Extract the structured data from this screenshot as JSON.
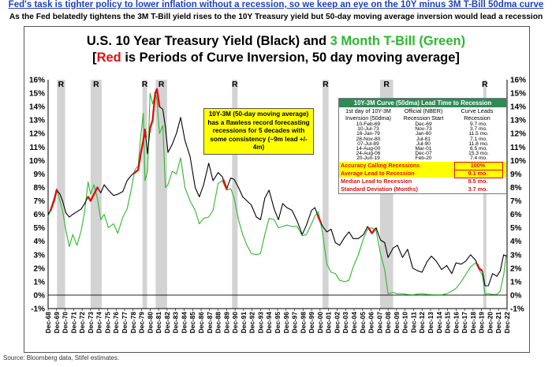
{
  "header": {
    "headline": "Fed's task is tighter policy to lower inflation without a recession, so we keep an eye on the 10Y minus 3M T-Bill 50dma curve",
    "subhead": "As the Fed belatedly tightens the 3M T-Bill yield rises to the 10Y Treasury yield but 50-day moving average inversion would lead a recession"
  },
  "title": {
    "line1_a": "U.S. 10 Year Treasury Yield (Black) and ",
    "line1_b": "3 Month T-Bill (Green)",
    "line2_a": "[",
    "line2_b": "Red",
    "line2_c": " is Periods of Curve Inversion, 50 day moving average]"
  },
  "callout": {
    "text": "10Y-3M (50-day moving average) has a flawless record forecasting recessions for 5 decades with some consistency (~9m lead +/- 4m)"
  },
  "lead_table": {
    "title": "10Y-3M Curve (50dma) Lead Time to Recession",
    "col1": "1st day of 10Y-3M Inversion (50dma)",
    "col2": "Official (NBER) Recession Start",
    "col3": "Curve Leads Recession",
    "rows": [
      [
        "10-Feb-69",
        "Dec-69",
        "9.7 mo."
      ],
      [
        "10-Jul-73",
        "Nov-73",
        "3.7 mo."
      ],
      [
        "16-Jan-79",
        "Jan-80",
        "11.5 mo."
      ],
      [
        "28-Nov-80",
        "Jul-81",
        "7.1 mo."
      ],
      [
        "07-Jul-89",
        "Jul-90",
        "11.8 mo."
      ],
      [
        "14-Aug-00",
        "Mar-01",
        "6.5 mo."
      ],
      [
        "24-Aug-06",
        "Dec-07",
        "15.3 mo."
      ],
      [
        "20-Jun-19",
        "Feb-20",
        "7.4 mo."
      ]
    ],
    "stats": [
      {
        "label": "Accuracy Calling Recessions",
        "value": "100%"
      },
      {
        "label": "Average Lead to Recession",
        "value": "9.1 mo."
      },
      {
        "label": "Median Lead to Recession",
        "value": "8.5 mo."
      },
      {
        "label": "Standard Deviation (Months)",
        "value": "3.7 mo."
      }
    ]
  },
  "source": "Source: Bloomberg data, Stifel estimates.",
  "colors": {
    "ten_year": "#000000",
    "three_month": "#2db82d",
    "inversion": "#e01010",
    "recession_bar": "#d3d3d3",
    "callout_bg": "#ffff00",
    "table_header": "#2e8b57"
  },
  "chart_data": {
    "type": "line",
    "ylim": [
      -1,
      16
    ],
    "y_ticks": [
      "-1%",
      "0%",
      "1%",
      "2%",
      "3%",
      "4%",
      "5%",
      "6%",
      "7%",
      "8%",
      "9%",
      "10%",
      "11%",
      "12%",
      "13%",
      "14%",
      "15%",
      "16%"
    ],
    "x_ticks": [
      "Dec-68",
      "Dec-69",
      "Dec-70",
      "Dec-71",
      "Dec-72",
      "Dec-73",
      "Dec-74",
      "Dec-75",
      "Dec-76",
      "Dec-77",
      "Dec-78",
      "Dec-79",
      "Dec-80",
      "Dec-81",
      "Dec-82",
      "Dec-83",
      "Dec-84",
      "Dec-85",
      "Dec-86",
      "Dec-87",
      "Dec-88",
      "Dec-89",
      "Dec-90",
      "Dec-91",
      "Dec-92",
      "Dec-93",
      "Dec-94",
      "Dec-95",
      "Dec-96",
      "Dec-97",
      "Dec-98",
      "Dec-99",
      "Dec-00",
      "Dec-01",
      "Dec-02",
      "Dec-03",
      "Dec-04",
      "Dec-05",
      "Dec-06",
      "Dec-07",
      "Dec-08",
      "Dec-09",
      "Dec-10",
      "Dec-11",
      "Dec-12",
      "Dec-13",
      "Dec-14",
      "Dec-15",
      "Dec-16",
      "Dec-17",
      "Dec-18",
      "Dec-19",
      "Dec-20",
      "Dec-21",
      "Dec-22"
    ],
    "recession_label": "R",
    "recessions": [
      [
        1969.95,
        1970.9
      ],
      [
        1973.9,
        1975.2
      ],
      [
        1980.0,
        1980.55
      ],
      [
        1981.55,
        1982.9
      ],
      [
        1990.55,
        1991.2
      ],
      [
        2001.2,
        2001.9
      ],
      [
        2007.95,
        2009.5
      ],
      [
        2020.1,
        2020.35
      ]
    ],
    "series": [
      {
        "name": "10 Year Treasury Yield",
        "x": [
          1968.9,
          1969.2,
          1969.6,
          1969.9,
          1970.3,
          1970.6,
          1971.0,
          1971.4,
          1971.8,
          1972.3,
          1972.8,
          1973.2,
          1973.6,
          1973.9,
          1974.3,
          1974.7,
          1975.1,
          1975.5,
          1976.0,
          1976.6,
          1977.1,
          1977.7,
          1978.2,
          1978.7,
          1979.1,
          1979.5,
          1979.8,
          1980.1,
          1980.3,
          1980.6,
          1980.9,
          1981.2,
          1981.5,
          1981.7,
          1982.0,
          1982.4,
          1982.7,
          1983.0,
          1983.5,
          1984.0,
          1984.5,
          1985.0,
          1985.6,
          1986.2,
          1986.7,
          1987.2,
          1987.8,
          1988.3,
          1988.9,
          1989.4,
          1989.9,
          1990.4,
          1990.8,
          1991.3,
          1991.8,
          1992.3,
          1992.8,
          1993.4,
          1993.9,
          1994.4,
          1994.9,
          1995.5,
          1996.0,
          1996.5,
          1997.0,
          1997.6,
          1998.2,
          1998.8,
          1999.3,
          1999.9,
          2000.3,
          2000.7,
          2001.2,
          2001.7,
          2002.2,
          2002.7,
          2003.2,
          2003.8,
          2004.3,
          2004.8,
          2005.4,
          2006.0,
          2006.5,
          2007.0,
          2007.5,
          2008.0,
          2008.5,
          2008.9,
          2009.5,
          2010.0,
          2010.6,
          2011.2,
          2011.8,
          2012.4,
          2012.9,
          2013.5,
          2014.0,
          2014.6,
          2015.2,
          2015.8,
          2016.4,
          2016.9,
          2017.5,
          2018.0,
          2018.6,
          2019.2,
          2019.6,
          2020.0,
          2020.3,
          2020.7,
          2021.2,
          2021.7,
          2022.1,
          2022.5,
          2022.8
        ],
        "y": [
          6.0,
          6.3,
          7.0,
          7.8,
          7.5,
          7.0,
          6.1,
          5.8,
          6.0,
          6.2,
          6.4,
          6.8,
          7.3,
          7.0,
          7.5,
          8.0,
          7.6,
          8.2,
          7.8,
          7.4,
          7.5,
          7.7,
          8.5,
          8.9,
          9.1,
          9.3,
          10.5,
          11.5,
          12.3,
          10.5,
          12.4,
          13.0,
          15.0,
          15.3,
          14.0,
          13.8,
          12.5,
          10.6,
          11.2,
          12.0,
          13.2,
          11.5,
          10.3,
          8.0,
          7.3,
          8.2,
          9.8,
          8.5,
          9.1,
          8.8,
          7.9,
          8.7,
          8.6,
          8.0,
          7.3,
          7.0,
          6.7,
          5.8,
          5.6,
          7.2,
          7.8,
          6.4,
          5.6,
          6.8,
          6.5,
          6.3,
          5.5,
          4.5,
          5.2,
          6.3,
          6.5,
          5.8,
          5.1,
          4.7,
          4.9,
          3.9,
          3.7,
          4.3,
          4.7,
          4.2,
          4.2,
          4.5,
          5.1,
          4.6,
          5.0,
          4.1,
          3.9,
          2.8,
          3.5,
          3.7,
          2.8,
          3.4,
          2.0,
          1.8,
          1.7,
          2.5,
          2.9,
          2.5,
          1.9,
          2.2,
          1.6,
          2.4,
          2.3,
          2.5,
          3.0,
          2.6,
          2.0,
          1.8,
          0.7,
          0.7,
          1.6,
          1.4,
          1.8,
          3.0,
          2.9
        ]
      },
      {
        "name": "3 Month T-Bill",
        "x": [
          1968.9,
          1969.2,
          1969.6,
          1969.9,
          1970.3,
          1970.6,
          1971.0,
          1971.4,
          1971.8,
          1972.3,
          1972.8,
          1973.2,
          1973.6,
          1973.9,
          1974.3,
          1974.7,
          1975.1,
          1975.5,
          1976.0,
          1976.6,
          1977.1,
          1977.7,
          1978.2,
          1978.7,
          1979.1,
          1979.5,
          1979.8,
          1980.1,
          1980.3,
          1980.6,
          1980.9,
          1981.2,
          1981.5,
          1981.7,
          1982.0,
          1982.4,
          1982.7,
          1983.0,
          1983.5,
          1984.0,
          1984.5,
          1985.0,
          1985.6,
          1986.2,
          1986.7,
          1987.2,
          1987.8,
          1988.3,
          1988.9,
          1989.4,
          1989.9,
          1990.4,
          1990.8,
          1991.3,
          1991.8,
          1992.3,
          1992.8,
          1993.4,
          1993.9,
          1994.4,
          1994.9,
          1995.5,
          1996.0,
          1996.5,
          1997.0,
          1997.6,
          1998.2,
          1998.8,
          1999.3,
          1999.9,
          2000.3,
          2000.7,
          2001.2,
          2001.7,
          2002.2,
          2002.7,
          2003.2,
          2003.8,
          2004.3,
          2004.8,
          2005.4,
          2006.0,
          2006.5,
          2007.0,
          2007.5,
          2008.0,
          2008.5,
          2008.9,
          2009.5,
          2010.0,
          2010.6,
          2011.2,
          2011.8,
          2012.4,
          2012.9,
          2013.5,
          2014.0,
          2014.6,
          2015.2,
          2015.8,
          2016.4,
          2016.9,
          2017.5,
          2018.0,
          2018.6,
          2019.2,
          2019.6,
          2020.0,
          2020.3,
          2020.7,
          2021.2,
          2021.7,
          2022.1,
          2022.5,
          2022.8
        ],
        "y": [
          5.8,
          6.4,
          7.2,
          7.9,
          7.0,
          6.3,
          4.8,
          3.6,
          4.5,
          3.7,
          4.8,
          6.2,
          8.4,
          7.5,
          8.2,
          7.2,
          5.6,
          6.0,
          5.0,
          5.3,
          4.6,
          5.8,
          6.4,
          7.9,
          9.3,
          9.6,
          11.8,
          13.5,
          8.5,
          9.2,
          15.0,
          14.2,
          15.0,
          14.5,
          12.0,
          12.6,
          8.0,
          8.2,
          9.2,
          9.0,
          10.2,
          8.0,
          7.0,
          6.3,
          5.3,
          5.7,
          5.8,
          6.3,
          8.3,
          8.5,
          7.8,
          7.9,
          7.2,
          5.6,
          4.5,
          3.7,
          3.1,
          3.0,
          3.1,
          4.5,
          5.7,
          5.6,
          5.0,
          5.1,
          5.2,
          5.1,
          5.1,
          4.4,
          4.5,
          5.3,
          5.9,
          6.2,
          4.6,
          2.3,
          1.7,
          1.6,
          1.1,
          1.0,
          1.1,
          2.1,
          3.0,
          4.2,
          4.9,
          5.0,
          4.8,
          3.1,
          1.9,
          0.1,
          0.2,
          0.1,
          0.1,
          0.05,
          0.02,
          0.08,
          0.1,
          0.05,
          0.04,
          0.03,
          0.02,
          0.1,
          0.3,
          0.5,
          1.0,
          1.5,
          2.1,
          2.4,
          1.9,
          1.5,
          0.1,
          0.1,
          0.05,
          0.05,
          0.3,
          1.5,
          3.0
        ]
      }
    ],
    "inversion_segments": [
      {
        "series": "10 Year Treasury Yield",
        "from": 1969.15,
        "to": 1970.05
      },
      {
        "series": "10 Year Treasury Yield",
        "from": 1973.5,
        "to": 1974.8
      },
      {
        "series": "10 Year Treasury Yield",
        "from": 1979.0,
        "to": 1980.4
      },
      {
        "series": "10 Year Treasury Yield",
        "from": 1980.85,
        "to": 1982.0
      },
      {
        "series": "10 Year Treasury Yield",
        "from": 1989.5,
        "to": 1990.0
      },
      {
        "series": "10 Year Treasury Yield",
        "from": 2000.6,
        "to": 2001.0
      },
      {
        "series": "10 Year Treasury Yield",
        "from": 2006.6,
        "to": 2007.4
      },
      {
        "series": "10 Year Treasury Yield",
        "from": 2019.4,
        "to": 2020.0
      }
    ]
  }
}
